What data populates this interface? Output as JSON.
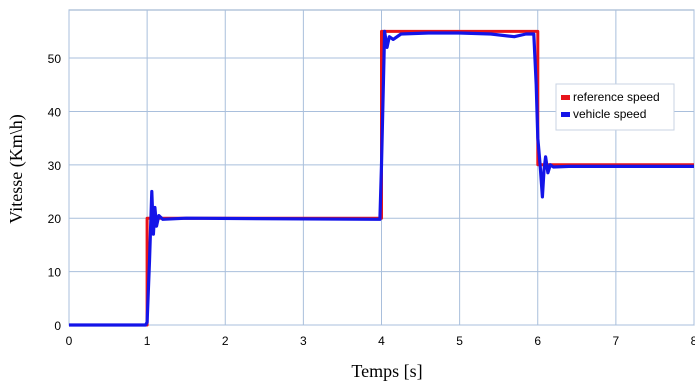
{
  "chart_data": {
    "type": "line",
    "title": "",
    "xlabel": "Temps [s]",
    "ylabel": "Vitesse  (Km\\h)",
    "xlim": [
      0,
      8
    ],
    "ylim": [
      0,
      59
    ],
    "xticks": [
      0,
      1,
      2,
      3,
      4,
      5,
      6,
      7,
      8
    ],
    "yticks": [
      0,
      10,
      20,
      30,
      40,
      50
    ],
    "grid": true,
    "legend_position": "right",
    "series": [
      {
        "name": "reference speed",
        "color": "#e8141b",
        "x": [
          0,
          1.0,
          1.0,
          4.0,
          4.0,
          6.0,
          6.0,
          8.0
        ],
        "y": [
          0,
          0,
          20,
          20,
          55,
          55,
          30,
          30
        ]
      },
      {
        "name": "vehicle speed",
        "color": "#1414e8",
        "x": [
          0,
          0.98,
          1.0,
          1.03,
          1.06,
          1.08,
          1.1,
          1.12,
          1.15,
          1.2,
          1.5,
          3.95,
          3.98,
          4.0,
          4.04,
          4.07,
          4.1,
          4.15,
          4.25,
          4.6,
          5.0,
          5.4,
          5.7,
          5.85,
          5.95,
          5.98,
          6.0,
          6.03,
          6.06,
          6.08,
          6.1,
          6.13,
          6.16,
          6.2,
          6.4,
          8.0
        ],
        "y": [
          0,
          0,
          0.5,
          12,
          25,
          17,
          22,
          18.5,
          20.5,
          19.8,
          20,
          19.8,
          19.8,
          30,
          55,
          52,
          54,
          53.5,
          54.5,
          54.7,
          54.7,
          54.5,
          54,
          54.5,
          54.5,
          45,
          35,
          30,
          24,
          29,
          31.5,
          28.5,
          30,
          29.6,
          29.7,
          29.7
        ]
      }
    ]
  }
}
